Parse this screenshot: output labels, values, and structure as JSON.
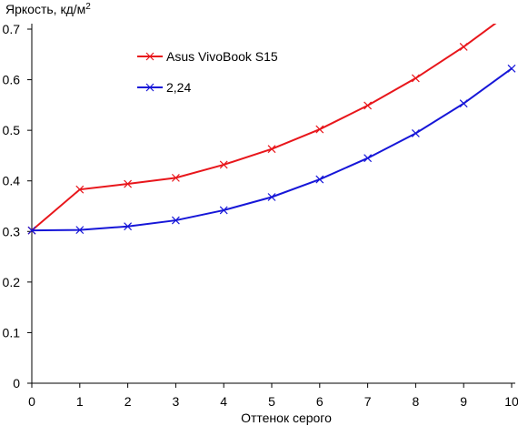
{
  "chart_data": {
    "type": "line",
    "title": "",
    "xlabel": "Оттенок серого",
    "ylabel": "Яркость, кд/м",
    "ylabel_superscript": "2",
    "xlim": [
      0,
      10
    ],
    "ylim": [
      0,
      0.7
    ],
    "x_ticks": [
      "0",
      "1",
      "2",
      "3",
      "4",
      "5",
      "6",
      "7",
      "8",
      "9",
      "10"
    ],
    "y_ticks": [
      "0",
      "0.1",
      "0.2",
      "0.3",
      "0.4",
      "0.5",
      "0.6",
      "0.7"
    ],
    "grid": false,
    "legend_position": "top-center",
    "x": [
      0,
      1,
      2,
      3,
      4,
      5,
      6,
      7,
      8,
      9,
      10
    ],
    "series": [
      {
        "name": "Asus VivoBook S15",
        "color": "#e8161b",
        "marker": "x",
        "values": [
          0.302,
          0.383,
          0.394,
          0.406,
          0.432,
          0.463,
          0.502,
          0.549,
          0.603,
          0.665,
          0.735
        ]
      },
      {
        "name": "2,24",
        "color": "#1616d8",
        "marker": "x",
        "values": [
          0.302,
          0.303,
          0.31,
          0.322,
          0.342,
          0.368,
          0.403,
          0.445,
          0.494,
          0.553,
          0.622
        ]
      }
    ]
  }
}
